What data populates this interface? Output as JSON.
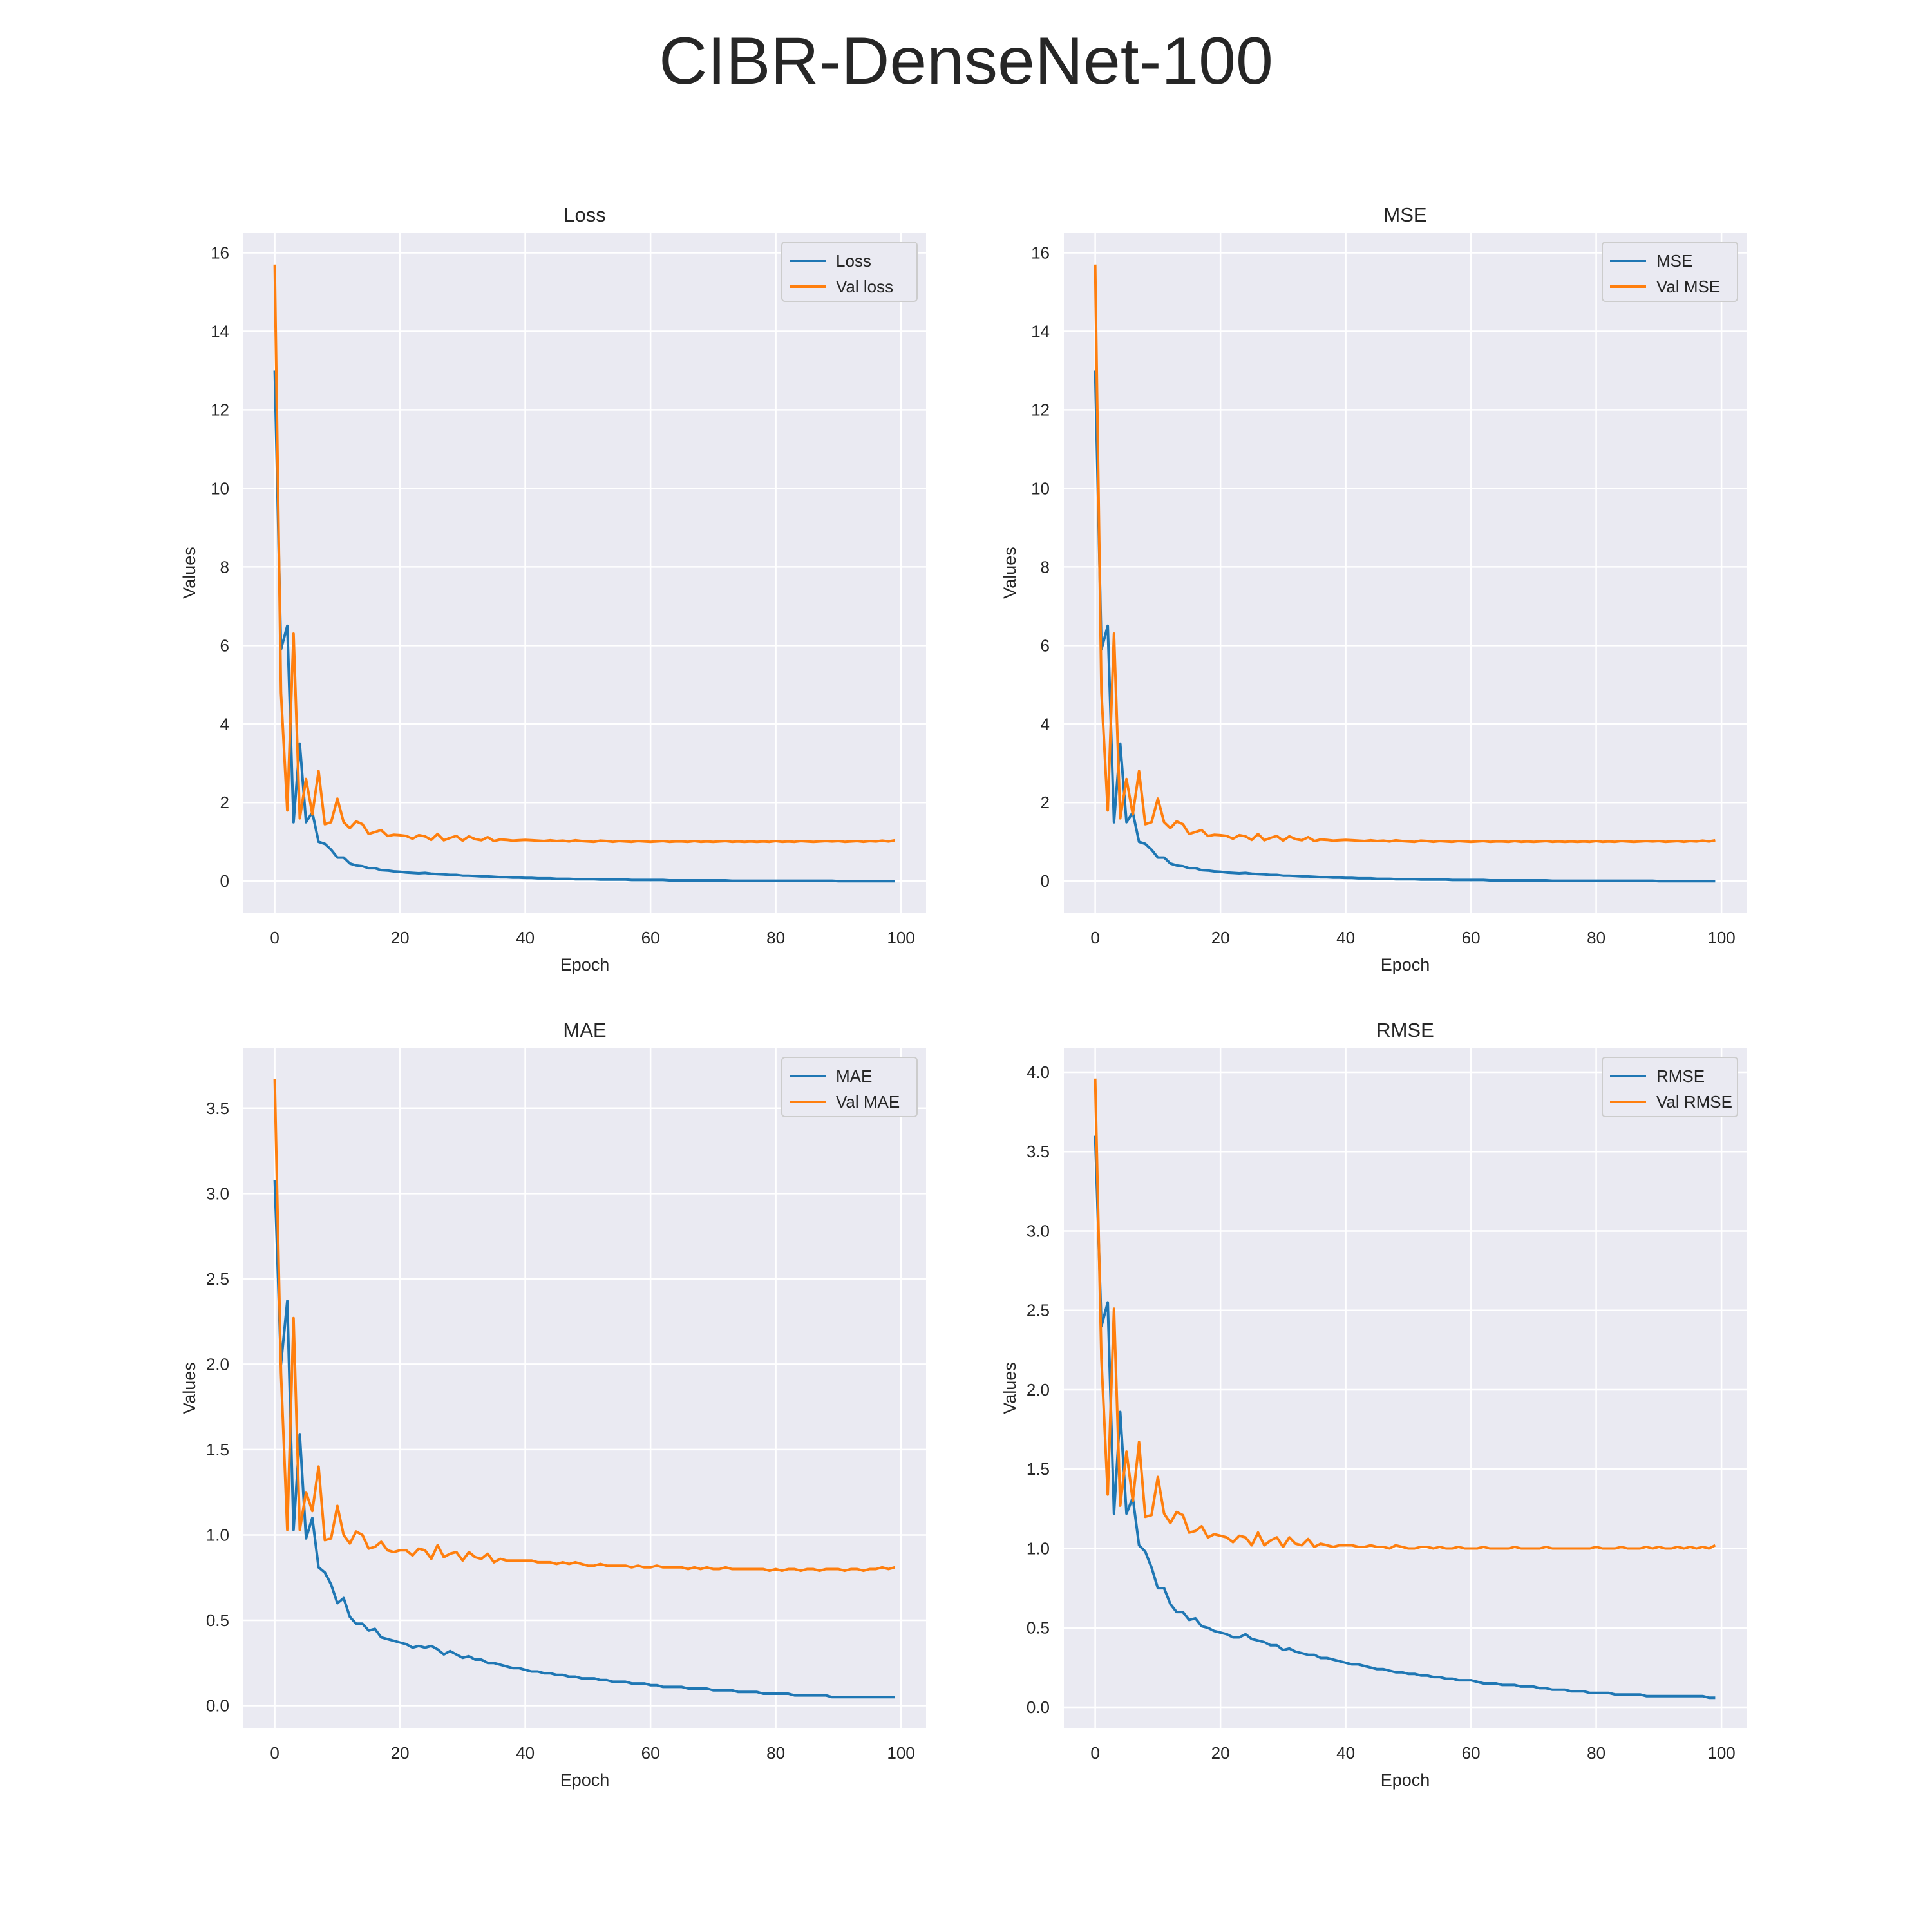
{
  "suptitle": "CIBR-DenseNet-100",
  "colors": {
    "train": "#1f77b4",
    "val": "#ff7f0e",
    "axes_bg": "#eaeaf2",
    "grid": "#ffffff"
  },
  "chart_data": [
    {
      "type": "line",
      "title": "Loss",
      "xlabel": "Epoch",
      "ylabel": "Values",
      "xlim": [
        -5,
        104
      ],
      "ylim": [
        -0.8,
        16.5
      ],
      "xticks": [
        0,
        20,
        40,
        60,
        80,
        100
      ],
      "yticks": [
        0,
        2,
        4,
        6,
        8,
        10,
        12,
        14,
        16
      ],
      "ytick_labels": [
        "0",
        "2",
        "4",
        "6",
        "8",
        "10",
        "12",
        "14",
        "16"
      ],
      "grid": true,
      "legend": "top-right",
      "series": [
        {
          "name": "Loss",
          "values": [
            13.0,
            5.9,
            6.5,
            1.5,
            3.5,
            1.5,
            1.75,
            1.0,
            0.95,
            0.8,
            0.6,
            0.6,
            0.45,
            0.4,
            0.38,
            0.33,
            0.33,
            0.28,
            0.27,
            0.25,
            0.24,
            0.22,
            0.21,
            0.2,
            0.21,
            0.19,
            0.18,
            0.17,
            0.16,
            0.16,
            0.14,
            0.14,
            0.13,
            0.12,
            0.12,
            0.11,
            0.1,
            0.1,
            0.09,
            0.09,
            0.08,
            0.08,
            0.07,
            0.07,
            0.07,
            0.06,
            0.06,
            0.06,
            0.05,
            0.05,
            0.05,
            0.05,
            0.04,
            0.04,
            0.04,
            0.04,
            0.04,
            0.03,
            0.03,
            0.03,
            0.03,
            0.03,
            0.03,
            0.02,
            0.02,
            0.02,
            0.02,
            0.02,
            0.02,
            0.02,
            0.02,
            0.02,
            0.02,
            0.01,
            0.01,
            0.01,
            0.01,
            0.01,
            0.01,
            0.01,
            0.01,
            0.01,
            0.01,
            0.01,
            0.01,
            0.01,
            0.01,
            0.01,
            0.01,
            0.01,
            0.0,
            0.0,
            0.0,
            0.0,
            0.0,
            0.0,
            0.0,
            0.0,
            0.0,
            0.0
          ]
        },
        {
          "name": "Val loss",
          "values": [
            15.7,
            4.8,
            1.8,
            6.3,
            1.6,
            2.6,
            1.7,
            2.8,
            1.45,
            1.5,
            2.1,
            1.5,
            1.35,
            1.52,
            1.45,
            1.2,
            1.25,
            1.3,
            1.15,
            1.18,
            1.17,
            1.15,
            1.08,
            1.17,
            1.14,
            1.05,
            1.2,
            1.04,
            1.1,
            1.15,
            1.03,
            1.14,
            1.07,
            1.04,
            1.12,
            1.02,
            1.06,
            1.05,
            1.03,
            1.04,
            1.05,
            1.04,
            1.03,
            1.02,
            1.04,
            1.02,
            1.03,
            1.01,
            1.04,
            1.02,
            1.01,
            1.0,
            1.03,
            1.02,
            1.0,
            1.02,
            1.01,
            1.0,
            1.02,
            1.01,
            1.0,
            1.01,
            1.02,
            1.0,
            1.01,
            1.01,
            1.0,
            1.02,
            1.0,
            1.01,
            1.0,
            1.01,
            1.02,
            1.0,
            1.01,
            1.0,
            1.01,
            1.0,
            1.01,
            1.0,
            1.02,
            1.0,
            1.01,
            1.0,
            1.02,
            1.01,
            1.0,
            1.01,
            1.02,
            1.01,
            1.02,
            1.0,
            1.01,
            1.02,
            1.0,
            1.02,
            1.01,
            1.03,
            1.01,
            1.04
          ]
        }
      ]
    },
    {
      "type": "line",
      "title": "MSE",
      "xlabel": "Epoch",
      "ylabel": "Values",
      "xlim": [
        -5,
        104
      ],
      "ylim": [
        -0.8,
        16.5
      ],
      "xticks": [
        0,
        20,
        40,
        60,
        80,
        100
      ],
      "yticks": [
        0,
        2,
        4,
        6,
        8,
        10,
        12,
        14,
        16
      ],
      "ytick_labels": [
        "0",
        "2",
        "4",
        "6",
        "8",
        "10",
        "12",
        "14",
        "16"
      ],
      "grid": true,
      "legend": "top-right",
      "series": [
        {
          "name": "MSE",
          "values": [
            13.0,
            5.9,
            6.5,
            1.5,
            3.5,
            1.5,
            1.75,
            1.0,
            0.95,
            0.8,
            0.6,
            0.6,
            0.45,
            0.4,
            0.38,
            0.33,
            0.33,
            0.28,
            0.27,
            0.25,
            0.24,
            0.22,
            0.21,
            0.2,
            0.21,
            0.19,
            0.18,
            0.17,
            0.16,
            0.16,
            0.14,
            0.14,
            0.13,
            0.12,
            0.12,
            0.11,
            0.1,
            0.1,
            0.09,
            0.09,
            0.08,
            0.08,
            0.07,
            0.07,
            0.07,
            0.06,
            0.06,
            0.06,
            0.05,
            0.05,
            0.05,
            0.05,
            0.04,
            0.04,
            0.04,
            0.04,
            0.04,
            0.03,
            0.03,
            0.03,
            0.03,
            0.03,
            0.03,
            0.02,
            0.02,
            0.02,
            0.02,
            0.02,
            0.02,
            0.02,
            0.02,
            0.02,
            0.02,
            0.01,
            0.01,
            0.01,
            0.01,
            0.01,
            0.01,
            0.01,
            0.01,
            0.01,
            0.01,
            0.01,
            0.01,
            0.01,
            0.01,
            0.01,
            0.01,
            0.01,
            0.0,
            0.0,
            0.0,
            0.0,
            0.0,
            0.0,
            0.0,
            0.0,
            0.0,
            0.0
          ]
        },
        {
          "name": "Val MSE",
          "values": [
            15.7,
            4.8,
            1.8,
            6.3,
            1.6,
            2.6,
            1.7,
            2.8,
            1.45,
            1.5,
            2.1,
            1.5,
            1.35,
            1.52,
            1.45,
            1.2,
            1.25,
            1.3,
            1.15,
            1.18,
            1.17,
            1.15,
            1.08,
            1.17,
            1.14,
            1.05,
            1.2,
            1.04,
            1.1,
            1.15,
            1.03,
            1.14,
            1.07,
            1.04,
            1.12,
            1.02,
            1.06,
            1.05,
            1.03,
            1.04,
            1.05,
            1.04,
            1.03,
            1.02,
            1.04,
            1.02,
            1.03,
            1.01,
            1.04,
            1.02,
            1.01,
            1.0,
            1.03,
            1.02,
            1.0,
            1.02,
            1.01,
            1.0,
            1.02,
            1.01,
            1.0,
            1.01,
            1.02,
            1.0,
            1.01,
            1.01,
            1.0,
            1.02,
            1.0,
            1.01,
            1.0,
            1.01,
            1.02,
            1.0,
            1.01,
            1.0,
            1.01,
            1.0,
            1.01,
            1.0,
            1.02,
            1.0,
            1.01,
            1.0,
            1.02,
            1.01,
            1.0,
            1.01,
            1.02,
            1.01,
            1.02,
            1.0,
            1.01,
            1.02,
            1.0,
            1.02,
            1.01,
            1.03,
            1.01,
            1.04
          ]
        }
      ]
    },
    {
      "type": "line",
      "title": "MAE",
      "xlabel": "Epoch",
      "ylabel": "Values",
      "xlim": [
        -5,
        104
      ],
      "ylim": [
        -0.13,
        3.85
      ],
      "xticks": [
        0,
        20,
        40,
        60,
        80,
        100
      ],
      "yticks": [
        0,
        0.5,
        1.0,
        1.5,
        2.0,
        2.5,
        3.0,
        3.5
      ],
      "ytick_labels": [
        "0.0",
        "0.5",
        "1.0",
        "1.5",
        "2.0",
        "2.5",
        "3.0",
        "3.5"
      ],
      "grid": true,
      "legend": "top-right",
      "series": [
        {
          "name": "MAE",
          "values": [
            3.08,
            2.0,
            2.37,
            1.03,
            1.59,
            0.98,
            1.1,
            0.81,
            0.78,
            0.71,
            0.6,
            0.63,
            0.52,
            0.48,
            0.48,
            0.44,
            0.45,
            0.4,
            0.39,
            0.38,
            0.37,
            0.36,
            0.34,
            0.35,
            0.34,
            0.35,
            0.33,
            0.3,
            0.32,
            0.3,
            0.28,
            0.29,
            0.27,
            0.27,
            0.25,
            0.25,
            0.24,
            0.23,
            0.22,
            0.22,
            0.21,
            0.2,
            0.2,
            0.19,
            0.19,
            0.18,
            0.18,
            0.17,
            0.17,
            0.16,
            0.16,
            0.16,
            0.15,
            0.15,
            0.14,
            0.14,
            0.14,
            0.13,
            0.13,
            0.13,
            0.12,
            0.12,
            0.11,
            0.11,
            0.11,
            0.11,
            0.1,
            0.1,
            0.1,
            0.1,
            0.09,
            0.09,
            0.09,
            0.09,
            0.08,
            0.08,
            0.08,
            0.08,
            0.07,
            0.07,
            0.07,
            0.07,
            0.07,
            0.06,
            0.06,
            0.06,
            0.06,
            0.06,
            0.06,
            0.05,
            0.05,
            0.05,
            0.05,
            0.05,
            0.05,
            0.05,
            0.05,
            0.05,
            0.05,
            0.05
          ]
        },
        {
          "name": "Val MAE",
          "values": [
            3.67,
            1.95,
            1.03,
            2.27,
            1.03,
            1.25,
            1.14,
            1.4,
            0.97,
            0.98,
            1.17,
            1.0,
            0.95,
            1.02,
            1.0,
            0.92,
            0.93,
            0.96,
            0.91,
            0.9,
            0.91,
            0.91,
            0.88,
            0.92,
            0.91,
            0.86,
            0.94,
            0.87,
            0.89,
            0.9,
            0.85,
            0.9,
            0.87,
            0.86,
            0.89,
            0.84,
            0.86,
            0.85,
            0.85,
            0.85,
            0.85,
            0.85,
            0.84,
            0.84,
            0.84,
            0.83,
            0.84,
            0.83,
            0.84,
            0.83,
            0.82,
            0.82,
            0.83,
            0.82,
            0.82,
            0.82,
            0.82,
            0.81,
            0.82,
            0.81,
            0.81,
            0.82,
            0.81,
            0.81,
            0.81,
            0.81,
            0.8,
            0.81,
            0.8,
            0.81,
            0.8,
            0.8,
            0.81,
            0.8,
            0.8,
            0.8,
            0.8,
            0.8,
            0.8,
            0.79,
            0.8,
            0.79,
            0.8,
            0.8,
            0.79,
            0.8,
            0.8,
            0.79,
            0.8,
            0.8,
            0.8,
            0.79,
            0.8,
            0.8,
            0.79,
            0.8,
            0.8,
            0.81,
            0.8,
            0.81
          ]
        }
      ]
    },
    {
      "type": "line",
      "title": "RMSE",
      "xlabel": "Epoch",
      "ylabel": "Values",
      "xlim": [
        -5,
        104
      ],
      "ylim": [
        -0.13,
        4.15
      ],
      "xticks": [
        0,
        20,
        40,
        60,
        80,
        100
      ],
      "yticks": [
        0,
        0.5,
        1.0,
        1.5,
        2.0,
        2.5,
        3.0,
        3.5,
        4.0
      ],
      "ytick_labels": [
        "0.0",
        "0.5",
        "1.0",
        "1.5",
        "2.0",
        "2.5",
        "3.0",
        "3.5",
        "4.0"
      ],
      "grid": true,
      "legend": "top-right",
      "series": [
        {
          "name": "RMSE",
          "values": [
            3.6,
            2.4,
            2.55,
            1.22,
            1.86,
            1.22,
            1.32,
            1.02,
            0.98,
            0.88,
            0.75,
            0.75,
            0.65,
            0.6,
            0.6,
            0.55,
            0.56,
            0.51,
            0.5,
            0.48,
            0.47,
            0.46,
            0.44,
            0.44,
            0.46,
            0.43,
            0.42,
            0.41,
            0.39,
            0.39,
            0.36,
            0.37,
            0.35,
            0.34,
            0.33,
            0.33,
            0.31,
            0.31,
            0.3,
            0.29,
            0.28,
            0.27,
            0.27,
            0.26,
            0.25,
            0.24,
            0.24,
            0.23,
            0.22,
            0.22,
            0.21,
            0.21,
            0.2,
            0.2,
            0.19,
            0.19,
            0.18,
            0.18,
            0.17,
            0.17,
            0.17,
            0.16,
            0.15,
            0.15,
            0.15,
            0.14,
            0.14,
            0.14,
            0.13,
            0.13,
            0.13,
            0.12,
            0.12,
            0.11,
            0.11,
            0.11,
            0.1,
            0.1,
            0.1,
            0.09,
            0.09,
            0.09,
            0.09,
            0.08,
            0.08,
            0.08,
            0.08,
            0.08,
            0.07,
            0.07,
            0.07,
            0.07,
            0.07,
            0.07,
            0.07,
            0.07,
            0.07,
            0.07,
            0.06,
            0.06
          ]
        },
        {
          "name": "Val RMSE",
          "values": [
            3.96,
            2.19,
            1.34,
            2.51,
            1.27,
            1.61,
            1.3,
            1.67,
            1.2,
            1.21,
            1.45,
            1.22,
            1.16,
            1.23,
            1.21,
            1.1,
            1.11,
            1.14,
            1.07,
            1.09,
            1.08,
            1.07,
            1.04,
            1.08,
            1.07,
            1.02,
            1.1,
            1.02,
            1.05,
            1.07,
            1.01,
            1.07,
            1.03,
            1.02,
            1.06,
            1.01,
            1.03,
            1.02,
            1.01,
            1.02,
            1.02,
            1.02,
            1.01,
            1.01,
            1.02,
            1.01,
            1.01,
            1.0,
            1.02,
            1.01,
            1.0,
            1.0,
            1.01,
            1.01,
            1.0,
            1.01,
            1.0,
            1.0,
            1.01,
            1.0,
            1.0,
            1.0,
            1.01,
            1.0,
            1.0,
            1.0,
            1.0,
            1.01,
            1.0,
            1.0,
            1.0,
            1.0,
            1.01,
            1.0,
            1.0,
            1.0,
            1.0,
            1.0,
            1.0,
            1.0,
            1.01,
            1.0,
            1.0,
            1.0,
            1.01,
            1.0,
            1.0,
            1.0,
            1.01,
            1.0,
            1.01,
            1.0,
            1.0,
            1.01,
            1.0,
            1.01,
            1.0,
            1.01,
            1.0,
            1.02
          ]
        }
      ]
    }
  ]
}
